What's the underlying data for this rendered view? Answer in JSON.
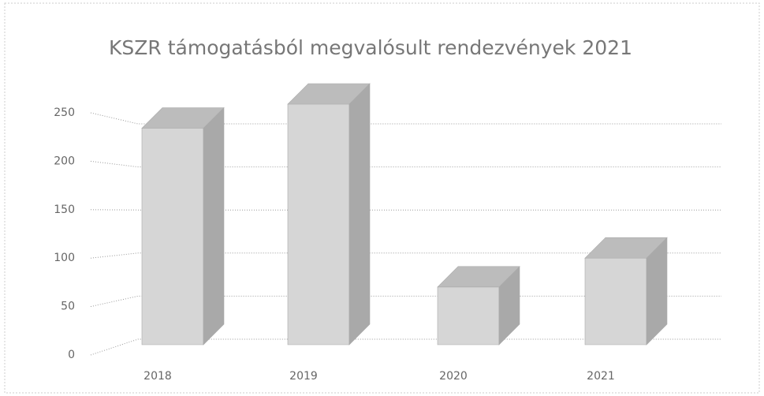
{
  "chart_data": {
    "type": "bar3d",
    "title": "KSZR  támogatásból megvalósult rendezvények  2021",
    "categories": [
      "2018",
      "2019",
      "2020",
      "2021"
    ],
    "values": [
      225,
      250,
      60,
      90
    ],
    "color": "#d6d6d6",
    "ylim": [
      0,
      250
    ],
    "yticks": [
      0,
      50,
      100,
      150,
      200,
      250
    ],
    "grid": true
  }
}
